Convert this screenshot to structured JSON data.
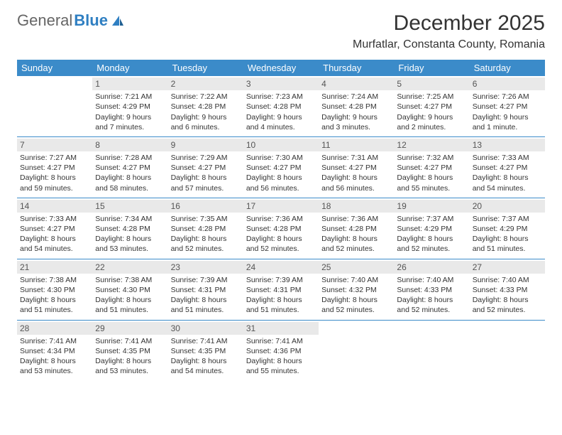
{
  "logo": {
    "part1": "General",
    "part2": "Blue"
  },
  "title": "December 2025",
  "location": "Murfatlar, Constanta County, Romania",
  "colors": {
    "header_bg": "#3b8bc9",
    "header_text": "#ffffff",
    "daynum_bg": "#e9e9e9",
    "border": "#3b8bc9",
    "logo_blue": "#2f7fc2"
  },
  "weekdays": [
    "Sunday",
    "Monday",
    "Tuesday",
    "Wednesday",
    "Thursday",
    "Friday",
    "Saturday"
  ],
  "weeks": [
    [
      null,
      {
        "n": "1",
        "sr": "Sunrise: 7:21 AM",
        "ss": "Sunset: 4:29 PM",
        "dl": "Daylight: 9 hours and 7 minutes."
      },
      {
        "n": "2",
        "sr": "Sunrise: 7:22 AM",
        "ss": "Sunset: 4:28 PM",
        "dl": "Daylight: 9 hours and 6 minutes."
      },
      {
        "n": "3",
        "sr": "Sunrise: 7:23 AM",
        "ss": "Sunset: 4:28 PM",
        "dl": "Daylight: 9 hours and 4 minutes."
      },
      {
        "n": "4",
        "sr": "Sunrise: 7:24 AM",
        "ss": "Sunset: 4:28 PM",
        "dl": "Daylight: 9 hours and 3 minutes."
      },
      {
        "n": "5",
        "sr": "Sunrise: 7:25 AM",
        "ss": "Sunset: 4:27 PM",
        "dl": "Daylight: 9 hours and 2 minutes."
      },
      {
        "n": "6",
        "sr": "Sunrise: 7:26 AM",
        "ss": "Sunset: 4:27 PM",
        "dl": "Daylight: 9 hours and 1 minute."
      }
    ],
    [
      {
        "n": "7",
        "sr": "Sunrise: 7:27 AM",
        "ss": "Sunset: 4:27 PM",
        "dl": "Daylight: 8 hours and 59 minutes."
      },
      {
        "n": "8",
        "sr": "Sunrise: 7:28 AM",
        "ss": "Sunset: 4:27 PM",
        "dl": "Daylight: 8 hours and 58 minutes."
      },
      {
        "n": "9",
        "sr": "Sunrise: 7:29 AM",
        "ss": "Sunset: 4:27 PM",
        "dl": "Daylight: 8 hours and 57 minutes."
      },
      {
        "n": "10",
        "sr": "Sunrise: 7:30 AM",
        "ss": "Sunset: 4:27 PM",
        "dl": "Daylight: 8 hours and 56 minutes."
      },
      {
        "n": "11",
        "sr": "Sunrise: 7:31 AM",
        "ss": "Sunset: 4:27 PM",
        "dl": "Daylight: 8 hours and 56 minutes."
      },
      {
        "n": "12",
        "sr": "Sunrise: 7:32 AM",
        "ss": "Sunset: 4:27 PM",
        "dl": "Daylight: 8 hours and 55 minutes."
      },
      {
        "n": "13",
        "sr": "Sunrise: 7:33 AM",
        "ss": "Sunset: 4:27 PM",
        "dl": "Daylight: 8 hours and 54 minutes."
      }
    ],
    [
      {
        "n": "14",
        "sr": "Sunrise: 7:33 AM",
        "ss": "Sunset: 4:27 PM",
        "dl": "Daylight: 8 hours and 54 minutes."
      },
      {
        "n": "15",
        "sr": "Sunrise: 7:34 AM",
        "ss": "Sunset: 4:28 PM",
        "dl": "Daylight: 8 hours and 53 minutes."
      },
      {
        "n": "16",
        "sr": "Sunrise: 7:35 AM",
        "ss": "Sunset: 4:28 PM",
        "dl": "Daylight: 8 hours and 52 minutes."
      },
      {
        "n": "17",
        "sr": "Sunrise: 7:36 AM",
        "ss": "Sunset: 4:28 PM",
        "dl": "Daylight: 8 hours and 52 minutes."
      },
      {
        "n": "18",
        "sr": "Sunrise: 7:36 AM",
        "ss": "Sunset: 4:28 PM",
        "dl": "Daylight: 8 hours and 52 minutes."
      },
      {
        "n": "19",
        "sr": "Sunrise: 7:37 AM",
        "ss": "Sunset: 4:29 PM",
        "dl": "Daylight: 8 hours and 52 minutes."
      },
      {
        "n": "20",
        "sr": "Sunrise: 7:37 AM",
        "ss": "Sunset: 4:29 PM",
        "dl": "Daylight: 8 hours and 51 minutes."
      }
    ],
    [
      {
        "n": "21",
        "sr": "Sunrise: 7:38 AM",
        "ss": "Sunset: 4:30 PM",
        "dl": "Daylight: 8 hours and 51 minutes."
      },
      {
        "n": "22",
        "sr": "Sunrise: 7:38 AM",
        "ss": "Sunset: 4:30 PM",
        "dl": "Daylight: 8 hours and 51 minutes."
      },
      {
        "n": "23",
        "sr": "Sunrise: 7:39 AM",
        "ss": "Sunset: 4:31 PM",
        "dl": "Daylight: 8 hours and 51 minutes."
      },
      {
        "n": "24",
        "sr": "Sunrise: 7:39 AM",
        "ss": "Sunset: 4:31 PM",
        "dl": "Daylight: 8 hours and 51 minutes."
      },
      {
        "n": "25",
        "sr": "Sunrise: 7:40 AM",
        "ss": "Sunset: 4:32 PM",
        "dl": "Daylight: 8 hours and 52 minutes."
      },
      {
        "n": "26",
        "sr": "Sunrise: 7:40 AM",
        "ss": "Sunset: 4:33 PM",
        "dl": "Daylight: 8 hours and 52 minutes."
      },
      {
        "n": "27",
        "sr": "Sunrise: 7:40 AM",
        "ss": "Sunset: 4:33 PM",
        "dl": "Daylight: 8 hours and 52 minutes."
      }
    ],
    [
      {
        "n": "28",
        "sr": "Sunrise: 7:41 AM",
        "ss": "Sunset: 4:34 PM",
        "dl": "Daylight: 8 hours and 53 minutes."
      },
      {
        "n": "29",
        "sr": "Sunrise: 7:41 AM",
        "ss": "Sunset: 4:35 PM",
        "dl": "Daylight: 8 hours and 53 minutes."
      },
      {
        "n": "30",
        "sr": "Sunrise: 7:41 AM",
        "ss": "Sunset: 4:35 PM",
        "dl": "Daylight: 8 hours and 54 minutes."
      },
      {
        "n": "31",
        "sr": "Sunrise: 7:41 AM",
        "ss": "Sunset: 4:36 PM",
        "dl": "Daylight: 8 hours and 55 minutes."
      },
      null,
      null,
      null
    ]
  ]
}
